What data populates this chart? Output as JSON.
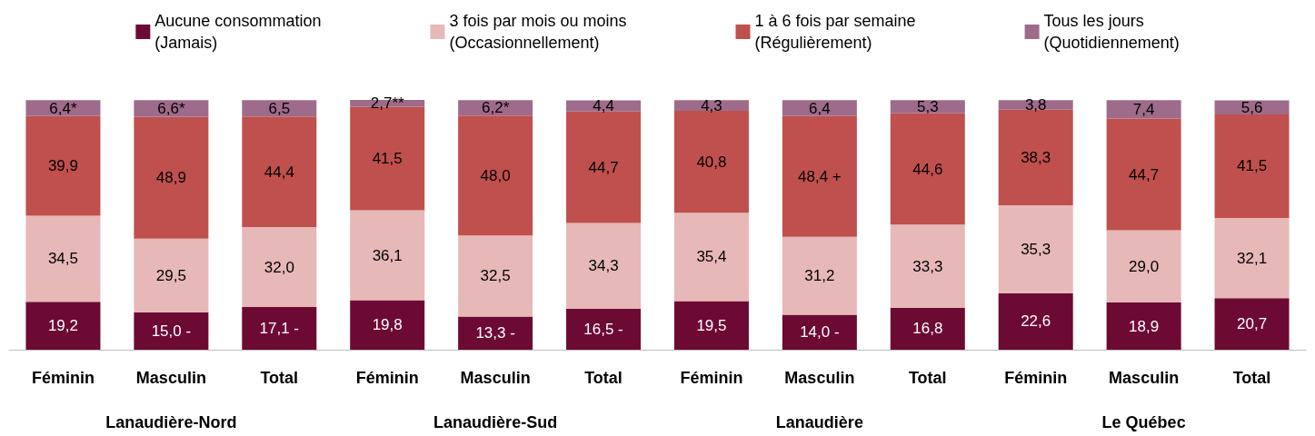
{
  "chart_data": {
    "type": "bar",
    "stacked": true,
    "legend": "top",
    "data_labels": false,
    "categories": [
      "Féminin",
      "Masculin",
      "Total",
      "Féminin",
      "Masculin",
      "Total",
      "Féminin",
      "Masculin",
      "Total",
      "Féminin",
      "Masculin",
      "Total"
    ],
    "annotations": [
      "Lanaudière-Nord",
      "Lanaudière-Sud",
      "Lanaudière",
      "Le Québec"
    ],
    "series": [
      {
        "name": "Aucune consommation\n(Jamais)",
        "color": "#6d0a33",
        "values": [
          19.2,
          15.0,
          17.1,
          19.8,
          13.3,
          16.5,
          19.5,
          14.0,
          16.8,
          22.6,
          18.9,
          20.7
        ],
        "value_labels": [
          "19,2",
          "15,0 -",
          "17,1 -",
          "19,8",
          "13,3 -",
          "16,5 -",
          "19,5",
          "14,0 -",
          "16,8",
          "22,6",
          "18,9",
          "20,7"
        ]
      },
      {
        "name": "3 fois par mois ou moins\n(Occasionnellement)",
        "color": "#e6b8b7",
        "values": [
          34.5,
          29.5,
          32.0,
          36.1,
          32.5,
          34.3,
          35.4,
          31.2,
          33.3,
          35.3,
          29.0,
          32.1
        ],
        "value_labels": [
          "34,5",
          "29,5",
          "32,0",
          "36,1",
          "32,5",
          "34,3",
          "35,4",
          "31,2",
          "33,3",
          "35,3",
          "29,0",
          "32,1"
        ]
      },
      {
        "name": "1 à 6 fois par semaine\n(Régulièrement)",
        "color": "#c0504d",
        "values": [
          39.9,
          48.9,
          44.4,
          41.5,
          48.0,
          44.7,
          40.8,
          48.4,
          44.6,
          38.3,
          44.7,
          41.5
        ],
        "value_labels": [
          "39,9",
          "48,9",
          "44,4",
          "41,5",
          "48,0",
          "44,7",
          "40,8",
          "48,4 +",
          "44,6",
          "38,3",
          "44,7",
          "41,5"
        ]
      },
      {
        "name": "Tous les jours\n(Quotidiennement)",
        "color": "#9e6b8a",
        "values": [
          6.4,
          6.6,
          6.5,
          2.7,
          6.2,
          4.4,
          4.3,
          6.4,
          5.3,
          3.8,
          7.4,
          5.6
        ],
        "value_labels": [
          "6,4*",
          "6,6*",
          "6,5",
          "2,7**",
          "6,2*",
          "4,4",
          "4,3",
          "6,4",
          "5,3",
          "3,8",
          "7,4",
          "5,6"
        ]
      }
    ]
  }
}
